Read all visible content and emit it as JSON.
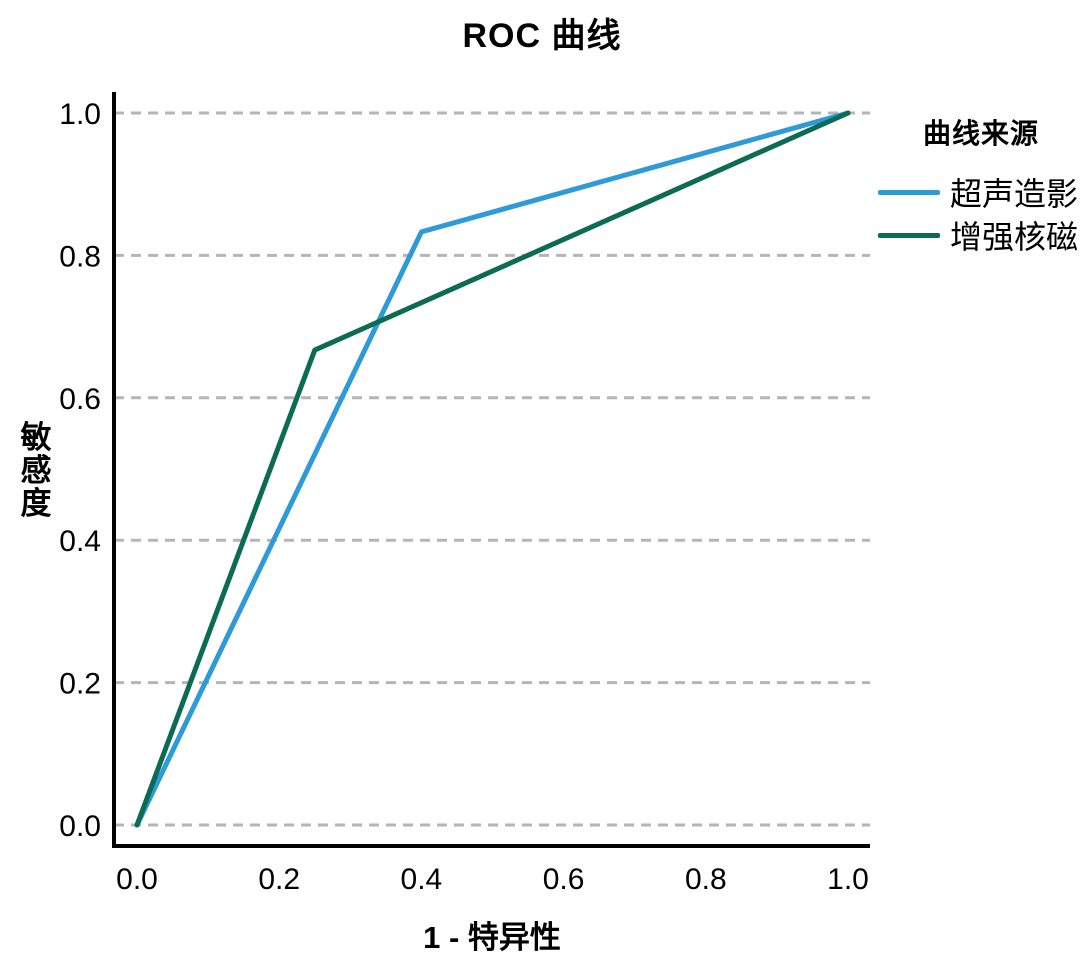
{
  "chart_data": {
    "type": "line",
    "title": "ROC 曲线",
    "xlabel": "1 - 特异性",
    "ylabel": "敏感度",
    "xlim": [
      0.0,
      1.0
    ],
    "ylim": [
      0.0,
      1.0
    ],
    "x_tick_labels": [
      "0.0",
      "0.2",
      "0.4",
      "0.6",
      "0.8",
      "1.0"
    ],
    "y_tick_labels": [
      "0.0",
      "0.2",
      "0.4",
      "0.6",
      "0.8",
      "1.0"
    ],
    "x_tick_values": [
      0.0,
      0.2,
      0.4,
      0.6,
      0.8,
      1.0
    ],
    "y_tick_values": [
      0.0,
      0.2,
      0.4,
      0.6,
      0.8,
      1.0
    ],
    "grid": "horizontal-dashed",
    "grid_color": "#b5b5b5",
    "axis_color": "#000000",
    "legend_title": "曲线来源",
    "legend_position": "right",
    "series": [
      {
        "name": "超声造影",
        "color": "#2E9AD8",
        "points": [
          [
            0.0,
            0.0
          ],
          [
            0.4,
            0.833
          ],
          [
            1.0,
            1.0
          ]
        ]
      },
      {
        "name": "增强核磁",
        "color": "#0B6B53",
        "points": [
          [
            0.0,
            0.0
          ],
          [
            0.25,
            0.667
          ],
          [
            1.0,
            1.0
          ]
        ]
      }
    ]
  }
}
